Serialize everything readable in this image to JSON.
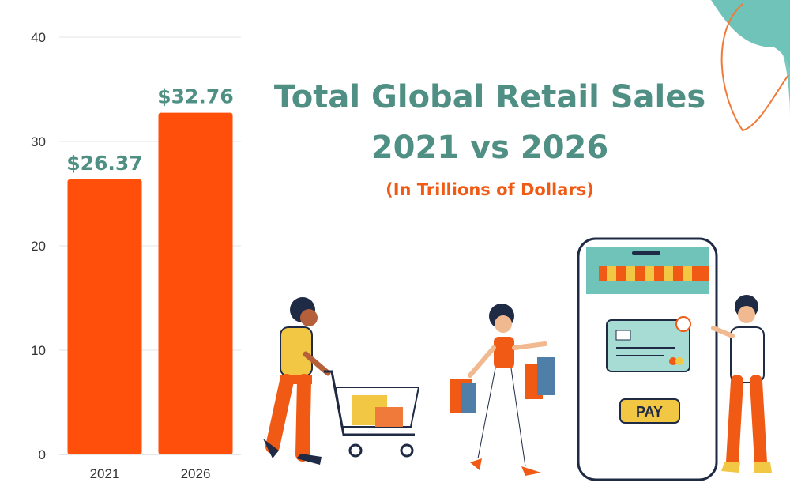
{
  "title_line1": "Total Global Retail Sales",
  "title_line2": "2021 vs 2026",
  "subtitle": "(In Trillions of Dollars)",
  "phone_button": "PAY",
  "colors": {
    "bar": "#ff4f0a",
    "title": "#4f8f84",
    "subtitle": "#f05a14",
    "accent_teal": "#6fc3b8"
  },
  "chart_data": {
    "type": "bar",
    "categories": [
      "2021",
      "2026"
    ],
    "values": [
      26.37,
      32.76
    ],
    "value_labels": [
      "$26.37",
      "$32.76"
    ],
    "yticks": [
      "0",
      "10",
      "20",
      "30",
      "40"
    ],
    "ylim": [
      0,
      40
    ],
    "grid": true,
    "title": "Total Global Retail Sales 2021 vs 2026",
    "xlabel": "",
    "ylabel": ""
  }
}
